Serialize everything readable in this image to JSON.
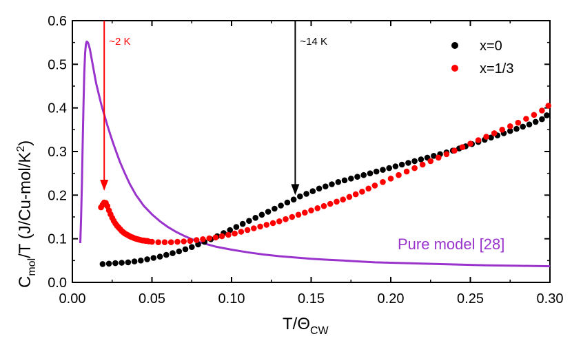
{
  "chart_data": {
    "type": "scatter",
    "xlabel": "T/Θ",
    "xlabel_sub": "CW",
    "ylabel_parts": {
      "c": "C",
      "c_sub": "mol",
      "mid": "/T (J/Cu-mol/K",
      "sup": "2",
      "end": ")"
    },
    "xlim": [
      0.0,
      0.3
    ],
    "ylim": [
      0.0,
      0.6
    ],
    "xticks": [
      "0.00",
      "0.05",
      "0.10",
      "0.15",
      "0.20",
      "0.25",
      "0.30"
    ],
    "yticks": [
      "0.0",
      "0.1",
      "0.2",
      "0.3",
      "0.4",
      "0.5",
      "0.6"
    ],
    "grid": false,
    "legend_position": "top-right",
    "colors": {
      "x0": "#000000",
      "x13": "#ff0000",
      "model": "#9933cc",
      "arrow_red": "#ff0000",
      "arrow_black": "#000000"
    },
    "series": [
      {
        "name": "x=0",
        "type": "scatter",
        "x": [
          0.019,
          0.023,
          0.027,
          0.031,
          0.035,
          0.039,
          0.043,
          0.047,
          0.051,
          0.055,
          0.059,
          0.063,
          0.067,
          0.071,
          0.075,
          0.079,
          0.083,
          0.087,
          0.091,
          0.095,
          0.099,
          0.103,
          0.107,
          0.111,
          0.115,
          0.119,
          0.123,
          0.127,
          0.131,
          0.135,
          0.139,
          0.143,
          0.147,
          0.151,
          0.155,
          0.159,
          0.163,
          0.167,
          0.171,
          0.175,
          0.179,
          0.183,
          0.187,
          0.191,
          0.195,
          0.199,
          0.203,
          0.207,
          0.211,
          0.215,
          0.219,
          0.223,
          0.227,
          0.231,
          0.235,
          0.239,
          0.243,
          0.247,
          0.251,
          0.255,
          0.259,
          0.263,
          0.267,
          0.271,
          0.275,
          0.279,
          0.283,
          0.287,
          0.291,
          0.295,
          0.298
        ],
        "y": [
          0.042,
          0.043,
          0.044,
          0.045,
          0.046,
          0.048,
          0.05,
          0.053,
          0.056,
          0.059,
          0.063,
          0.067,
          0.071,
          0.076,
          0.081,
          0.087,
          0.093,
          0.099,
          0.106,
          0.113,
          0.12,
          0.127,
          0.134,
          0.141,
          0.148,
          0.155,
          0.162,
          0.169,
          0.176,
          0.183,
          0.19,
          0.197,
          0.203,
          0.209,
          0.215,
          0.22,
          0.225,
          0.23,
          0.234,
          0.238,
          0.242,
          0.246,
          0.25,
          0.254,
          0.258,
          0.262,
          0.266,
          0.27,
          0.274,
          0.278,
          0.282,
          0.286,
          0.29,
          0.294,
          0.298,
          0.302,
          0.307,
          0.312,
          0.317,
          0.322,
          0.327,
          0.332,
          0.337,
          0.342,
          0.347,
          0.352,
          0.357,
          0.362,
          0.368,
          0.374,
          0.383
        ]
      },
      {
        "name": "x=1/3",
        "type": "scatter",
        "x": [
          0.018,
          0.019,
          0.02,
          0.021,
          0.022,
          0.023,
          0.024,
          0.025,
          0.026,
          0.027,
          0.028,
          0.029,
          0.03,
          0.031,
          0.032,
          0.033,
          0.034,
          0.035,
          0.036,
          0.037,
          0.038,
          0.039,
          0.04,
          0.041,
          0.042,
          0.043,
          0.044,
          0.045,
          0.046,
          0.047,
          0.048,
          0.05,
          0.054,
          0.058,
          0.062,
          0.066,
          0.07,
          0.074,
          0.078,
          0.082,
          0.086,
          0.09,
          0.094,
          0.098,
          0.102,
          0.106,
          0.11,
          0.114,
          0.118,
          0.122,
          0.126,
          0.13,
          0.134,
          0.138,
          0.142,
          0.146,
          0.15,
          0.154,
          0.158,
          0.162,
          0.166,
          0.17,
          0.174,
          0.178,
          0.182,
          0.186,
          0.19,
          0.195,
          0.2,
          0.205,
          0.21,
          0.215,
          0.22,
          0.225,
          0.23,
          0.235,
          0.24,
          0.245,
          0.25,
          0.255,
          0.26,
          0.265,
          0.27,
          0.275,
          0.28,
          0.285,
          0.29,
          0.295,
          0.299
        ],
        "y": [
          0.172,
          0.178,
          0.183,
          0.182,
          0.175,
          0.165,
          0.156,
          0.148,
          0.141,
          0.135,
          0.13,
          0.126,
          0.122,
          0.118,
          0.115,
          0.112,
          0.11,
          0.108,
          0.106,
          0.104,
          0.103,
          0.101,
          0.1,
          0.099,
          0.098,
          0.097,
          0.096,
          0.096,
          0.095,
          0.095,
          0.094,
          0.093,
          0.092,
          0.092,
          0.092,
          0.093,
          0.094,
          0.095,
          0.097,
          0.099,
          0.101,
          0.103,
          0.106,
          0.109,
          0.112,
          0.116,
          0.12,
          0.124,
          0.128,
          0.132,
          0.136,
          0.14,
          0.145,
          0.15,
          0.155,
          0.16,
          0.165,
          0.17,
          0.175,
          0.18,
          0.185,
          0.19,
          0.196,
          0.202,
          0.208,
          0.215,
          0.222,
          0.23,
          0.238,
          0.246,
          0.254,
          0.262,
          0.27,
          0.278,
          0.286,
          0.294,
          0.302,
          0.31,
          0.318,
          0.326,
          0.334,
          0.342,
          0.35,
          0.358,
          0.366,
          0.375,
          0.384,
          0.394,
          0.405
        ]
      },
      {
        "name": "Pure model [28]",
        "type": "line",
        "x": [
          0.005,
          0.0055,
          0.006,
          0.0065,
          0.007,
          0.0075,
          0.008,
          0.0085,
          0.009,
          0.0095,
          0.01,
          0.011,
          0.012,
          0.013,
          0.014,
          0.015,
          0.016,
          0.017,
          0.018,
          0.019,
          0.02,
          0.022,
          0.024,
          0.026,
          0.028,
          0.03,
          0.033,
          0.036,
          0.04,
          0.045,
          0.05,
          0.055,
          0.06,
          0.065,
          0.07,
          0.075,
          0.08,
          0.085,
          0.09,
          0.1,
          0.11,
          0.12,
          0.13,
          0.14,
          0.15,
          0.16,
          0.17,
          0.18,
          0.19,
          0.2,
          0.22,
          0.24,
          0.26,
          0.28,
          0.3
        ],
        "y": [
          0.09,
          0.15,
          0.23,
          0.32,
          0.41,
          0.48,
          0.525,
          0.545,
          0.552,
          0.551,
          0.548,
          0.535,
          0.515,
          0.495,
          0.475,
          0.455,
          0.44,
          0.425,
          0.41,
          0.397,
          0.385,
          0.36,
          0.337,
          0.315,
          0.295,
          0.275,
          0.25,
          0.226,
          0.2,
          0.175,
          0.156,
          0.14,
          0.127,
          0.116,
          0.107,
          0.099,
          0.092,
          0.087,
          0.082,
          0.075,
          0.069,
          0.064,
          0.06,
          0.057,
          0.054,
          0.052,
          0.05,
          0.048,
          0.046,
          0.045,
          0.043,
          0.041,
          0.039,
          0.038,
          0.037
        ]
      }
    ],
    "annotations": [
      {
        "text": "~2 K",
        "x": 0.02,
        "y_from": 0.6,
        "y_to": 0.21,
        "color": "#ff0000"
      },
      {
        "text": "~14 K",
        "x": 0.14,
        "y_from": 0.6,
        "y_to": 0.2,
        "color": "#000000"
      }
    ]
  }
}
